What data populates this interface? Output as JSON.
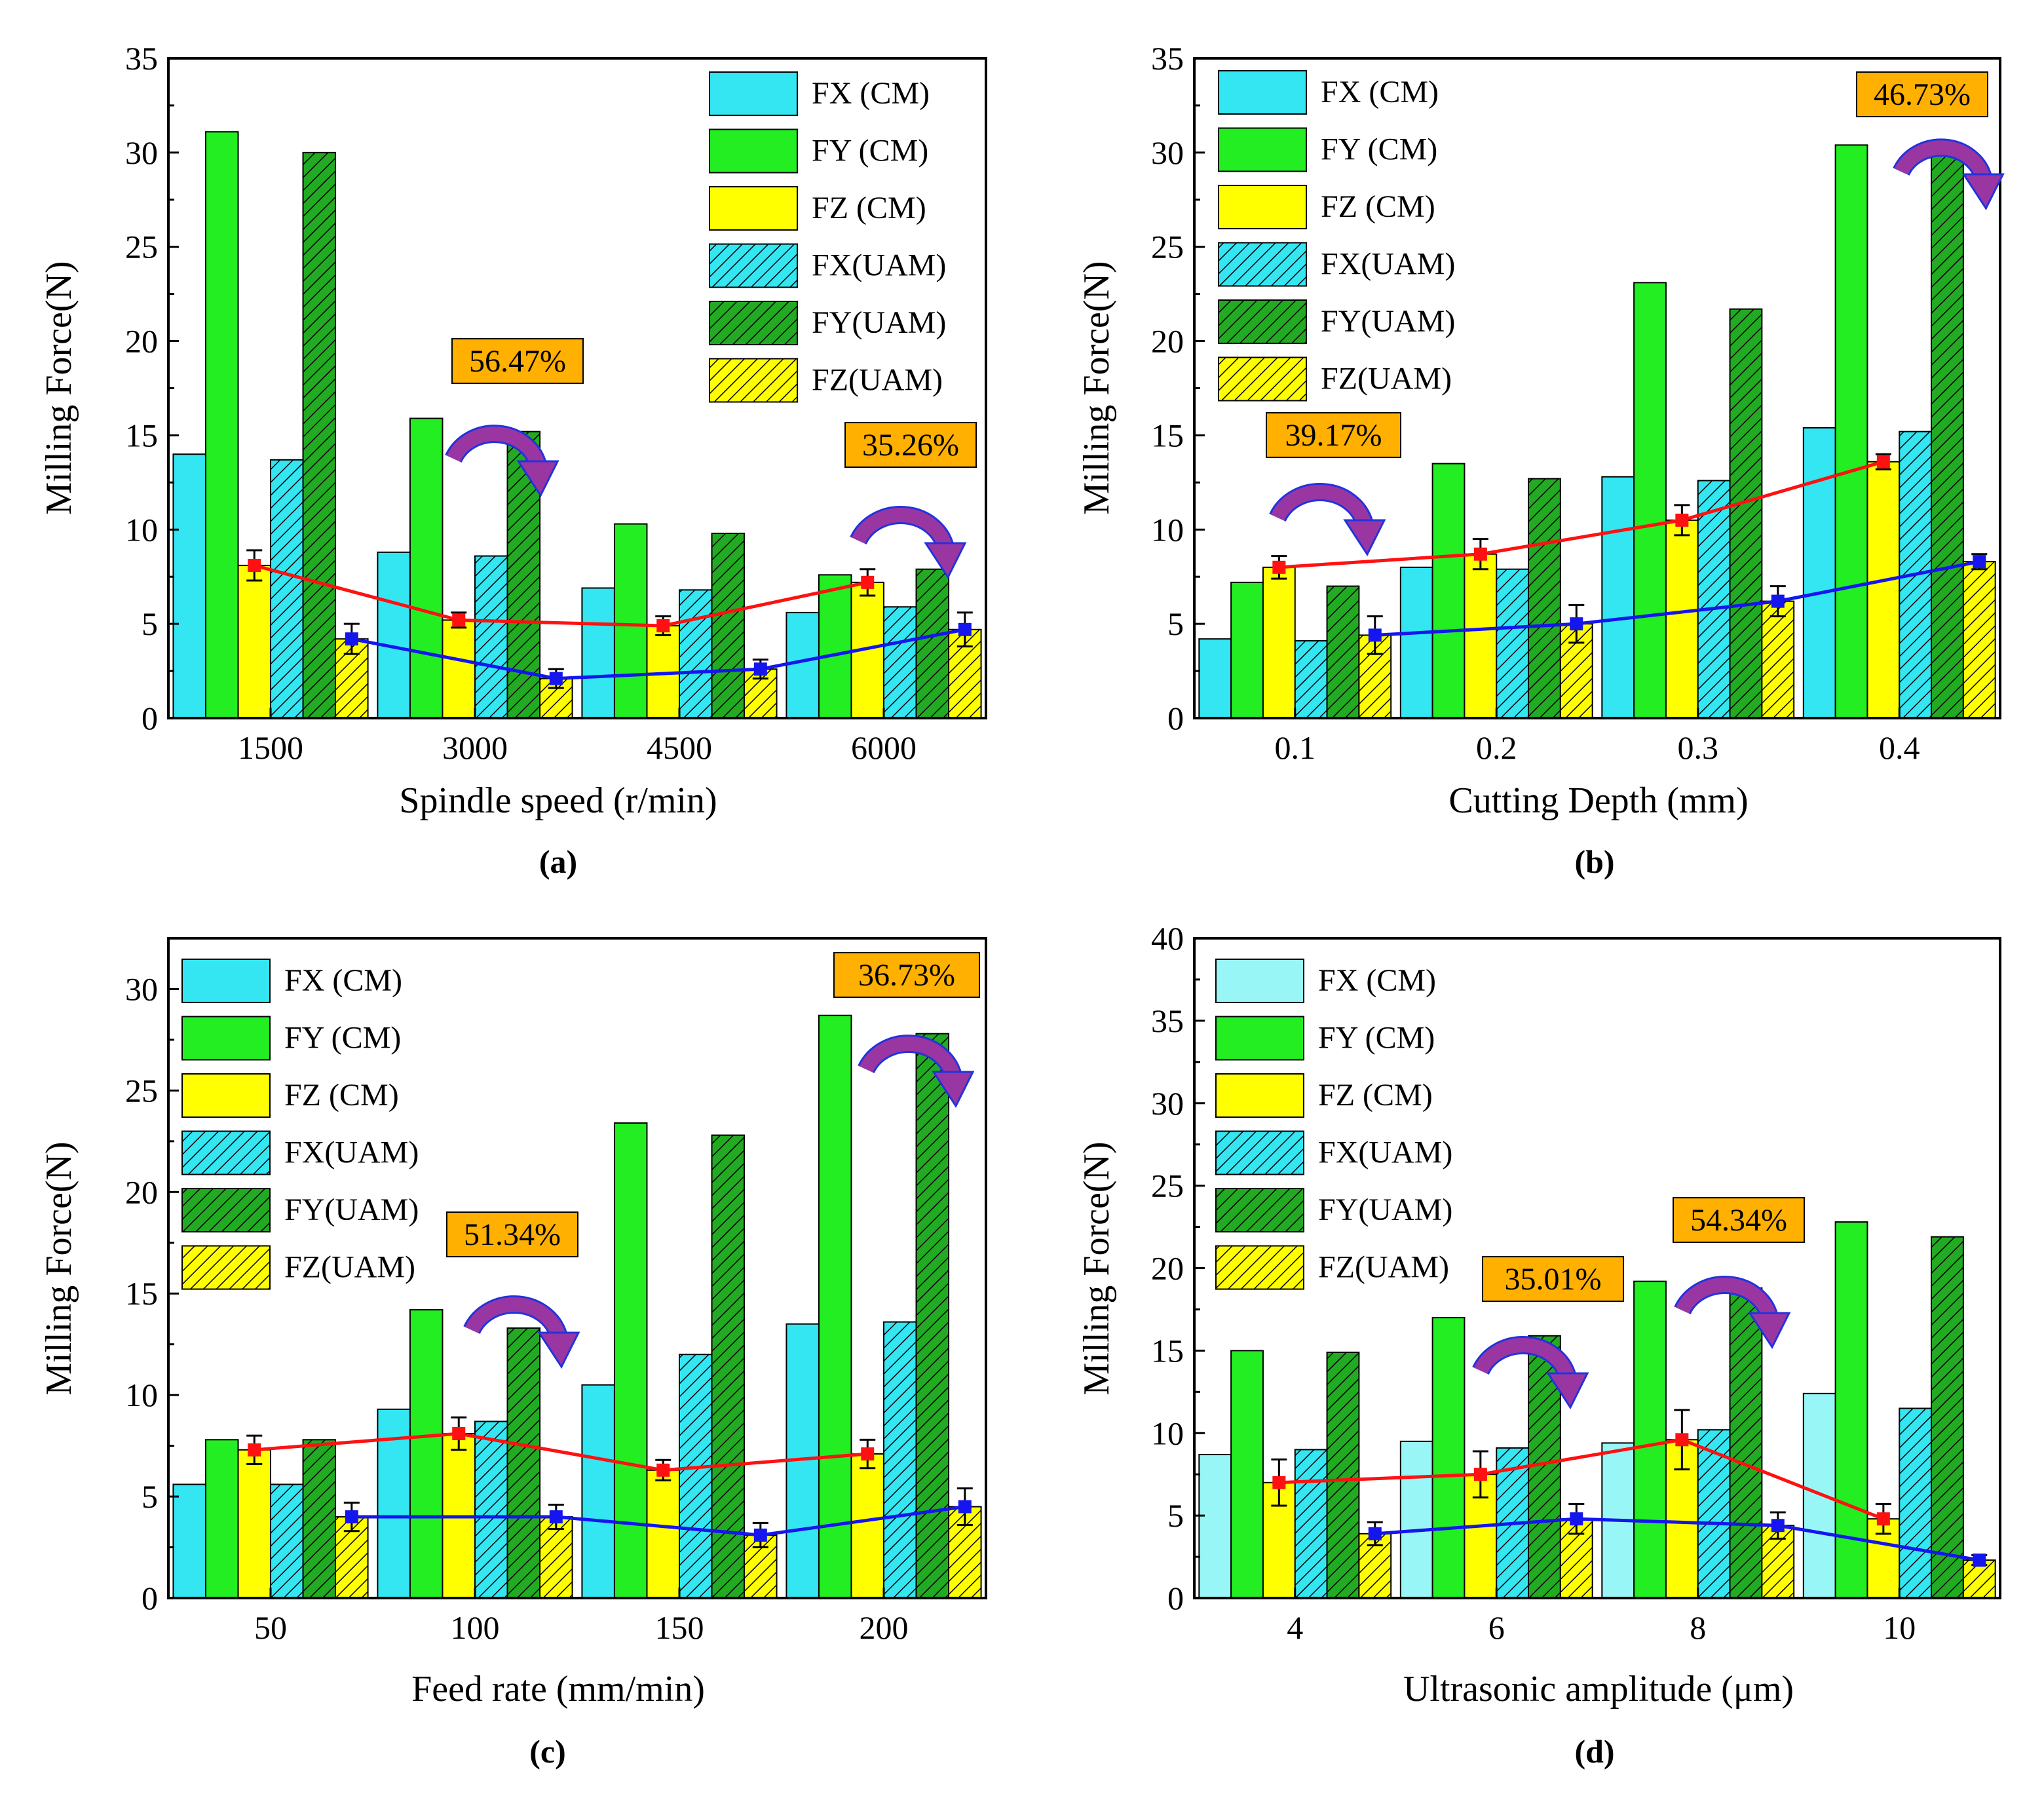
{
  "colors": {
    "fx": "#33e6f2",
    "fy": "#22ee22",
    "fz": "#ffff00",
    "fx_light": "#99f6f6",
    "red_line": "#ff1111",
    "blue_line": "#1515ee",
    "annotation_bg": "#ffb000",
    "arrow": "#9a36a2",
    "arrow_outline": "#2233dd"
  },
  "legend_labels": [
    "FX (CM)",
    "FY (CM)",
    "FZ (CM)",
    "FX(UAM)",
    "FY(UAM)",
    "FZ(UAM)"
  ],
  "chart_data": [
    {
      "type": "bar",
      "panel": "(a)",
      "xlabel": "Spindle speed (r/min)",
      "ylabel": "Milling Force(N)",
      "ylim": [
        0,
        35
      ],
      "yticks": [
        0,
        5,
        10,
        15,
        20,
        25,
        30,
        35
      ],
      "categories": [
        "1500",
        "3000",
        "4500",
        "6000"
      ],
      "legend_position": "top-right",
      "series": [
        {
          "name": "FX (CM)",
          "values": [
            14.0,
            8.8,
            6.9,
            5.6
          ]
        },
        {
          "name": "FY (CM)",
          "values": [
            31.1,
            15.9,
            10.3,
            7.6
          ]
        },
        {
          "name": "FZ (CM)",
          "values": [
            8.1,
            5.2,
            4.9,
            7.2
          ]
        },
        {
          "name": "FX(UAM)",
          "values": [
            13.7,
            8.6,
            6.8,
            5.9
          ]
        },
        {
          "name": "FY(UAM)",
          "values": [
            30.0,
            15.2,
            9.8,
            7.9
          ]
        },
        {
          "name": "FZ(UAM)",
          "values": [
            4.2,
            2.1,
            2.6,
            4.7
          ]
        }
      ],
      "trend_lines": [
        {
          "name": "FZ (CM)",
          "values": [
            8.1,
            5.2,
            4.9,
            7.2
          ],
          "errors": [
            0.8,
            0.4,
            0.5,
            0.7
          ]
        },
        {
          "name": "FZ(UAM)",
          "values": [
            4.2,
            2.1,
            2.6,
            4.7
          ],
          "errors": [
            0.8,
            0.5,
            0.5,
            0.9
          ]
        }
      ],
      "annotations": [
        "56.47%",
        "35.26%"
      ]
    },
    {
      "type": "bar",
      "panel": "(b)",
      "xlabel": "Cutting Depth (mm)",
      "ylabel": "Milling Force(N)",
      "ylim": [
        0,
        35
      ],
      "yticks": [
        0,
        5,
        10,
        15,
        20,
        25,
        30,
        35
      ],
      "categories": [
        "0.1",
        "0.2",
        "0.3",
        "0.4"
      ],
      "legend_position": "top-left",
      "series": [
        {
          "name": "FX (CM)",
          "values": [
            4.2,
            8.0,
            12.8,
            15.4
          ]
        },
        {
          "name": "FY (CM)",
          "values": [
            7.2,
            13.5,
            23.1,
            30.4
          ]
        },
        {
          "name": "FZ (CM)",
          "values": [
            8.0,
            8.7,
            10.5,
            13.6
          ]
        },
        {
          "name": "FX(UAM)",
          "values": [
            4.1,
            7.9,
            12.6,
            15.2
          ]
        },
        {
          "name": "FY(UAM)",
          "values": [
            7.0,
            12.7,
            21.7,
            30.3
          ]
        },
        {
          "name": "FZ(UAM)",
          "values": [
            4.4,
            5.0,
            6.2,
            8.3
          ]
        }
      ],
      "trend_lines": [
        {
          "name": "FZ (CM)",
          "values": [
            8.0,
            8.7,
            10.5,
            13.6
          ],
          "errors": [
            0.6,
            0.8,
            0.8,
            0.4
          ]
        },
        {
          "name": "FZ(UAM)",
          "values": [
            4.4,
            5.0,
            6.2,
            8.3
          ],
          "errors": [
            1.0,
            1.0,
            0.8,
            0.4
          ]
        }
      ],
      "annotations": [
        "39.17%",
        "46.73%"
      ]
    },
    {
      "type": "bar",
      "panel": "(c)",
      "xlabel": "Feed rate (mm/min)",
      "ylabel": "Milling Force(N)",
      "ylim": [
        0,
        32.5
      ],
      "yticks": [
        0,
        5,
        10,
        15,
        20,
        25,
        30
      ],
      "categories": [
        "50",
        "100",
        "150",
        "200"
      ],
      "legend_position": "top-left",
      "series": [
        {
          "name": "FX (CM)",
          "values": [
            5.6,
            9.3,
            10.5,
            13.5
          ]
        },
        {
          "name": "FY (CM)",
          "values": [
            7.8,
            14.2,
            23.4,
            28.7
          ]
        },
        {
          "name": "FZ (CM)",
          "values": [
            7.3,
            8.1,
            6.3,
            7.1
          ]
        },
        {
          "name": "FX(UAM)",
          "values": [
            5.6,
            8.7,
            12.0,
            13.6
          ]
        },
        {
          "name": "FY(UAM)",
          "values": [
            7.8,
            13.3,
            22.8,
            27.8
          ]
        },
        {
          "name": "FZ(UAM)",
          "values": [
            4.0,
            4.0,
            3.1,
            4.5
          ]
        }
      ],
      "trend_lines": [
        {
          "name": "FZ (CM)",
          "values": [
            7.3,
            8.1,
            6.3,
            7.1
          ],
          "errors": [
            0.7,
            0.8,
            0.5,
            0.7
          ]
        },
        {
          "name": "FZ(UAM)",
          "values": [
            4.0,
            4.0,
            3.1,
            4.5
          ],
          "errors": [
            0.7,
            0.6,
            0.6,
            0.9
          ]
        }
      ],
      "annotations": [
        "51.34%",
        "36.73%"
      ]
    },
    {
      "type": "bar",
      "panel": "(d)",
      "xlabel": "Ultrasonic amplitude (μm)",
      "ylabel": "Milling Force(N)",
      "ylim": [
        0,
        40
      ],
      "yticks": [
        0,
        5,
        10,
        15,
        20,
        25,
        30,
        35,
        40
      ],
      "categories": [
        "4",
        "6",
        "8",
        "10"
      ],
      "legend_position": "top-left",
      "series": [
        {
          "name": "FX (CM)",
          "values": [
            8.7,
            9.5,
            9.4,
            12.4
          ]
        },
        {
          "name": "FY (CM)",
          "values": [
            15.0,
            17.0,
            19.2,
            22.8
          ]
        },
        {
          "name": "FZ (CM)",
          "values": [
            7.0,
            7.5,
            9.6,
            4.8
          ]
        },
        {
          "name": "FX(UAM)",
          "values": [
            9.0,
            9.1,
            10.2,
            11.5
          ]
        },
        {
          "name": "FY(UAM)",
          "values": [
            14.9,
            15.9,
            18.8,
            21.9
          ]
        },
        {
          "name": "FZ(UAM)",
          "values": [
            3.9,
            4.8,
            4.4,
            2.3
          ]
        }
      ],
      "trend_lines": [
        {
          "name": "FZ (CM)",
          "values": [
            7.0,
            7.5,
            9.6,
            4.8
          ],
          "errors": [
            1.4,
            1.4,
            1.8,
            0.9
          ]
        },
        {
          "name": "FZ(UAM)",
          "values": [
            3.9,
            4.8,
            4.4,
            2.3
          ],
          "errors": [
            0.7,
            0.9,
            0.8,
            0.3
          ]
        }
      ],
      "annotations": [
        "35.01%",
        "54.34%"
      ]
    }
  ]
}
